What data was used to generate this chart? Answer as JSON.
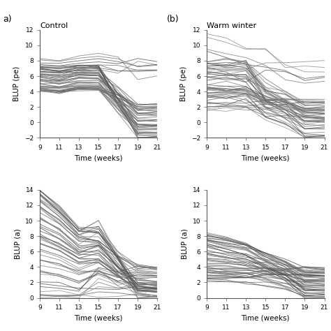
{
  "title_a": "Control",
  "title_b": "Warm winter",
  "xlabel": "Time (weeks)",
  "ylabel_pe": "BLUP (pe)",
  "ylabel_a": "BLUP (a)",
  "x_ticks": [
    9,
    11,
    13,
    15,
    17,
    19,
    21
  ],
  "x_min": 9,
  "x_max": 21,
  "ylim_pe": [
    -2,
    12
  ],
  "ylim_a": [
    0,
    14
  ],
  "n_lines": 55,
  "line_width": 0.65,
  "seed": 7
}
